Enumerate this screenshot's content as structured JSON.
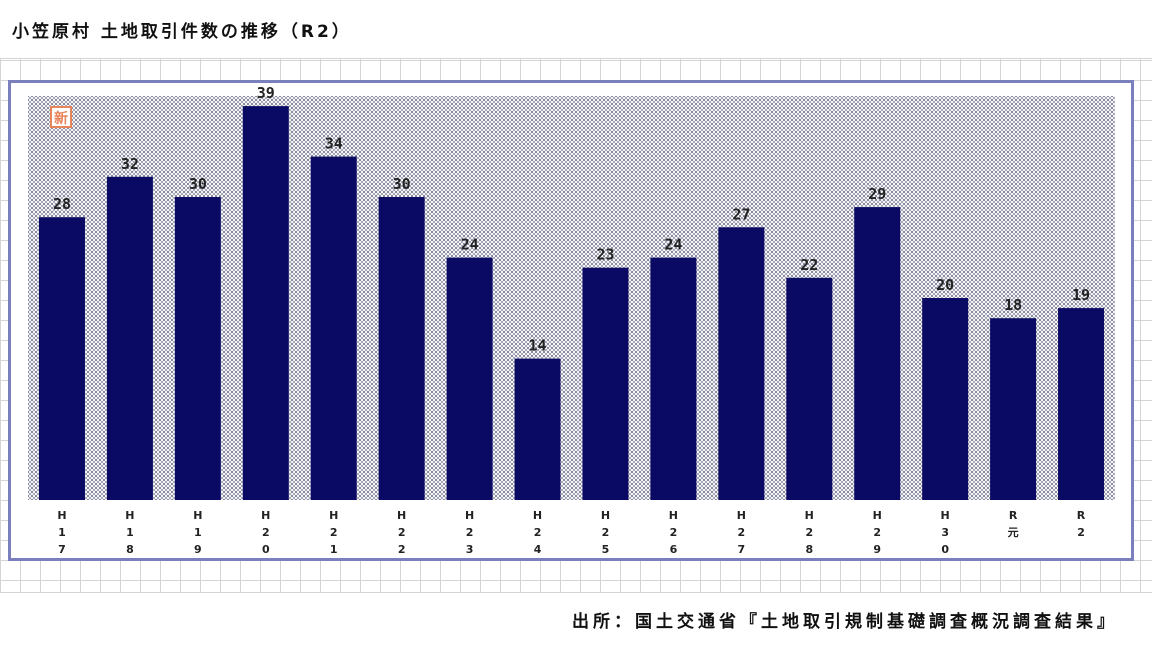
{
  "page": {
    "title": "小笠原村 土地取引件数の推移（R2）",
    "source": "出所：国土交通省『土地取引規制基礎調査概況調査結果』",
    "badge": "新",
    "badge_color": "#e8845a"
  },
  "chart_data": {
    "type": "bar",
    "title": "小笠原村 土地取引件数の推移（R2）",
    "xlabel": "",
    "ylabel": "",
    "categories": [
      "H17",
      "H18",
      "H19",
      "H20",
      "H21",
      "H22",
      "H23",
      "H24",
      "H25",
      "H26",
      "H27",
      "H28",
      "H29",
      "H30",
      "R元",
      "R2"
    ],
    "values": [
      28,
      32,
      30,
      39,
      34,
      30,
      24,
      14,
      23,
      24,
      27,
      22,
      29,
      20,
      18,
      19
    ],
    "ylim": [
      0,
      40
    ],
    "grid": false,
    "legend": "none",
    "bar_color": "#0a0a64",
    "plot_bg": "#d9dae2"
  }
}
